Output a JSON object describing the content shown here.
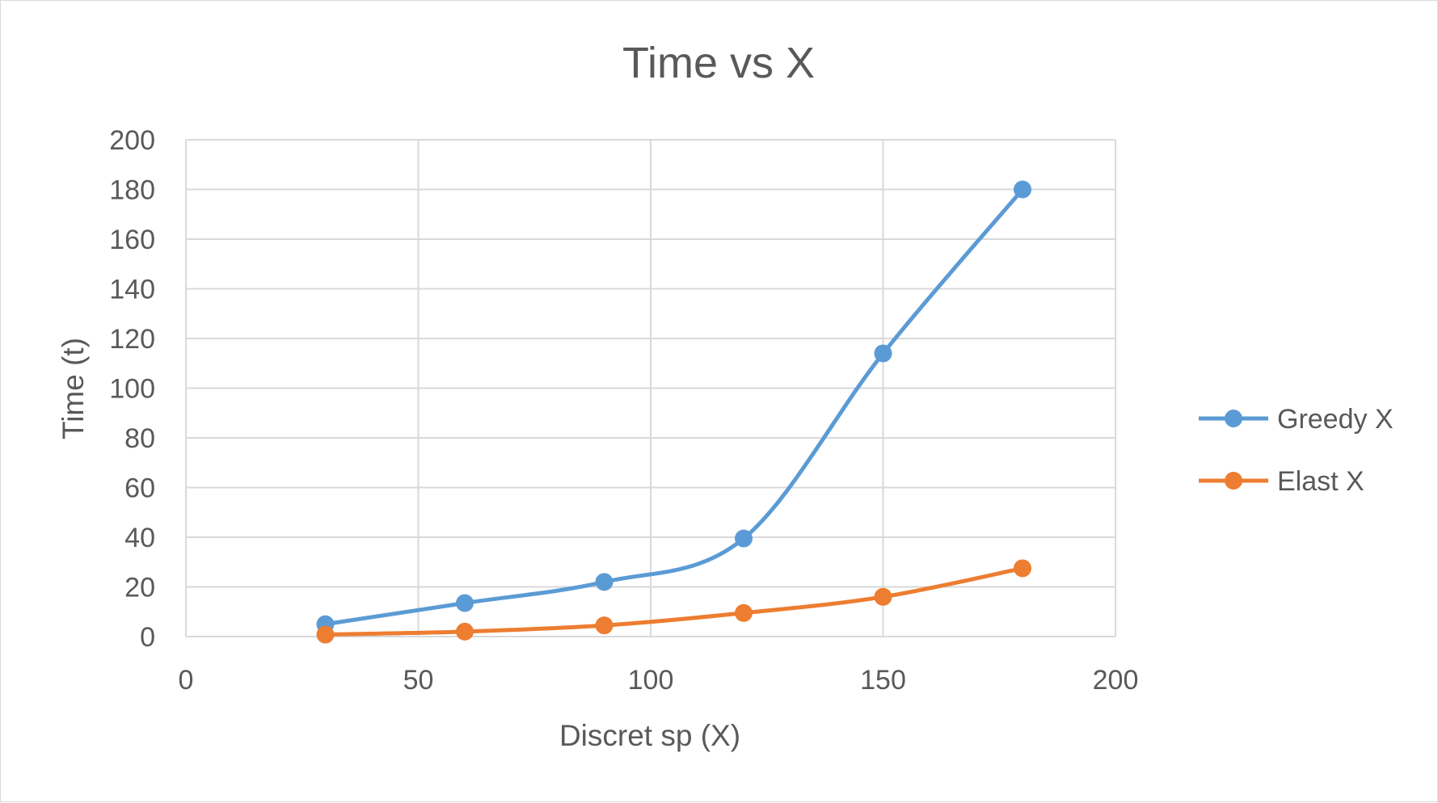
{
  "chart_data": {
    "type": "line",
    "title": "Time vs X",
    "xlabel": "Discret sp (X)",
    "ylabel": "Time (t)",
    "xlim": [
      0,
      200
    ],
    "ylim": [
      0,
      200
    ],
    "xticks": [
      0,
      50,
      100,
      150,
      200
    ],
    "yticks": [
      0,
      20,
      40,
      60,
      80,
      100,
      120,
      140,
      160,
      180,
      200
    ],
    "grid": true,
    "smooth": true,
    "legend_position": "right",
    "series": [
      {
        "name": "Greedy X",
        "color": "#5b9bd5",
        "x": [
          30,
          60,
          90,
          120,
          150,
          180
        ],
        "y": [
          5,
          13.5,
          22,
          39.5,
          114,
          180
        ]
      },
      {
        "name": "Elast X",
        "color": "#ed7d31",
        "x": [
          30,
          60,
          90,
          120,
          150,
          180
        ],
        "y": [
          0.8,
          2,
          4.5,
          9.5,
          16,
          27.5
        ]
      }
    ]
  }
}
